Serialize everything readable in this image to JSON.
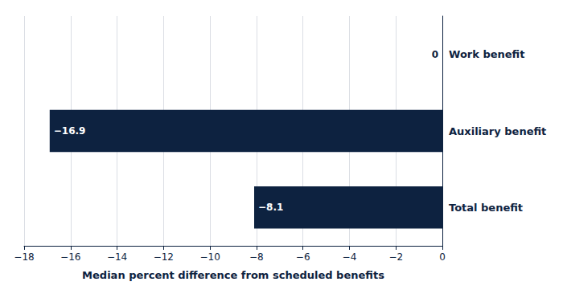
{
  "chart_data": {
    "type": "bar",
    "orientation": "horizontal",
    "categories": [
      "Total benefit",
      "Auxiliary benefit",
      "Work benefit"
    ],
    "values": [
      -8.1,
      -16.9,
      0
    ],
    "value_labels": [
      "−8.1",
      "−16.9",
      "0"
    ],
    "data_labels": true,
    "color": "#0d2240",
    "xlabel": "Median percent difference from scheduled benefits",
    "xlim": [
      -18,
      0
    ],
    "xticks": [
      {
        "value": -18,
        "label": "−18"
      },
      {
        "value": -16,
        "label": "−16"
      },
      {
        "value": -14,
        "label": "−14"
      },
      {
        "value": -12,
        "label": "−12"
      },
      {
        "value": -10,
        "label": "−10"
      },
      {
        "value": -8,
        "label": "−8"
      },
      {
        "value": -6,
        "label": "−6"
      },
      {
        "value": -4,
        "label": "−4"
      },
      {
        "value": -2,
        "label": "−2"
      },
      0
    ],
    "grid": true
  }
}
